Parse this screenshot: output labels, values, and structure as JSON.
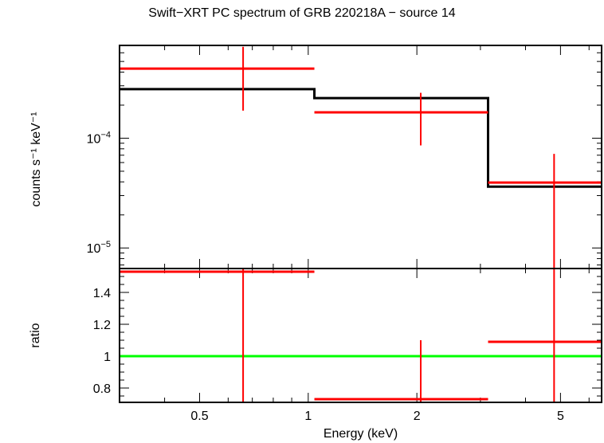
{
  "chart_data": [
    {
      "type": "scatter",
      "panel": "spectrum",
      "title": "Swift−XRT PC spectrum of GRB 220218A − source 14",
      "ylabel": "counts s⁻¹ keV⁻¹",
      "xscale": "log",
      "yscale": "log",
      "xlim": [
        0.3,
        6.5
      ],
      "ylim": [
        6.5e-06,
        0.0007
      ],
      "y_tick_labels": [
        {
          "value": 0.0001,
          "base": "10",
          "exp": "−4"
        },
        {
          "value": 1e-05,
          "base": "10",
          "exp": "−5"
        }
      ],
      "colors": {
        "data": "#ff0000",
        "model": "#000000"
      },
      "series": [
        {
          "kind": "data",
          "points": [
            {
              "x": 0.66,
              "xlo": 0.3,
              "xhi": 1.04,
              "y": 0.00043,
              "ylo": 0.000178,
              "yhi": 0.00068
            },
            {
              "x": 2.05,
              "xlo": 1.04,
              "xhi": 3.15,
              "y": 0.000172,
              "ylo": 8.6e-05,
              "yhi": 0.000259
            },
            {
              "x": 4.8,
              "xlo": 3.15,
              "xhi": 6.5,
              "y": 3.94e-05,
              "ylo": 6.5e-06,
              "yhi": 7.2e-05
            }
          ]
        },
        {
          "kind": "model",
          "steps": [
            {
              "xlo": 0.3,
              "xhi": 1.04,
              "y": 0.00028
            },
            {
              "xlo": 1.04,
              "xhi": 3.15,
              "y": 0.000232
            },
            {
              "xlo": 3.15,
              "xhi": 6.5,
              "y": 3.62e-05
            }
          ]
        }
      ]
    },
    {
      "type": "scatter",
      "panel": "ratio",
      "xlabel": "Energy (keV)",
      "ylabel": "ratio",
      "xscale": "log",
      "xlim": [
        0.3,
        6.5
      ],
      "ylim": [
        0.71,
        1.55
      ],
      "x_ticks": [
        0.5,
        1,
        2,
        5
      ],
      "x_tick_labels": [
        "0.5",
        "1",
        "2",
        "5"
      ],
      "y_ticks": [
        0.8,
        1,
        1.2,
        1.4
      ],
      "y_tick_labels": [
        "0.8",
        "1",
        "1.2",
        "1.4"
      ],
      "reference_line": 1,
      "colors": {
        "data": "#ff0000",
        "reference": "#00ff00"
      },
      "points": [
        {
          "x": 0.66,
          "xlo": 0.3,
          "xhi": 1.04,
          "y": 1.53,
          "ylo": 0.71,
          "yhi": 1.55
        },
        {
          "x": 2.05,
          "xlo": 1.04,
          "xhi": 3.15,
          "y": 0.73,
          "ylo": 0.71,
          "yhi": 1.1
        },
        {
          "x": 4.8,
          "xlo": 3.15,
          "xhi": 6.5,
          "y": 1.09,
          "ylo": 0.71,
          "yhi": 1.55
        }
      ]
    }
  ]
}
